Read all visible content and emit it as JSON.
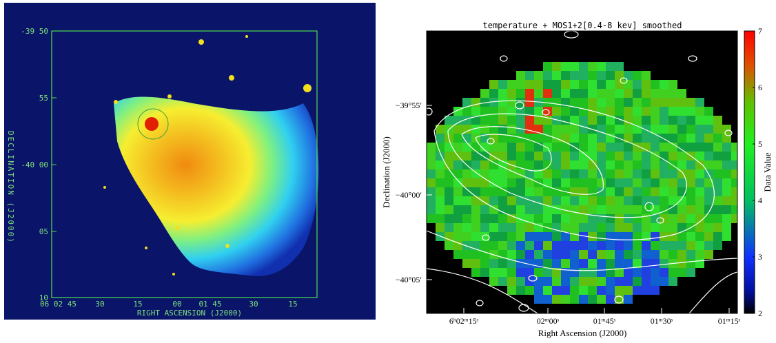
{
  "left_panel": {
    "y_axis_label": "DECLINATION (J2000)",
    "x_axis_label": "RIGHT ASCENSION (J2000)",
    "y_ticks": [
      "-39 50",
      "55",
      "-40 00",
      "05",
      "10"
    ],
    "x_ticks": [
      "06 02 45",
      "30",
      "15",
      "00",
      "01 45",
      "30",
      "15"
    ]
  },
  "right_panel": {
    "title": "temperature + MOS1+2[0.4-8 kev] smoothed",
    "y_axis_label": "Declination (J2000)",
    "x_axis_label": "Right Ascension (J2000)",
    "y_ticks": [
      "−39°55′",
      "−40°00′",
      "−40°05′"
    ],
    "x_ticks": [
      "6ʰ02ᵐ15ˢ",
      "02ᵐ00ˢ",
      "01ᵐ45ˢ",
      "01ᵐ30ˢ",
      "01ᵐ15ˢ"
    ],
    "colorbar_label": "Data Value",
    "colorbar_ticks": [
      2,
      3,
      4,
      5,
      6,
      7
    ]
  }
}
